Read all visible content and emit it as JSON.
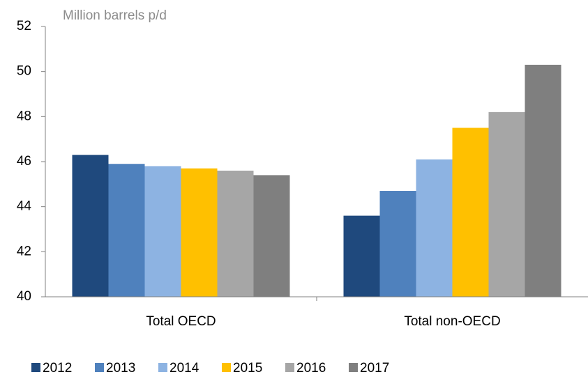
{
  "chart_data": {
    "type": "bar",
    "y_label": "Million barrels p/d",
    "categories": [
      "Total OECD",
      "Total non-OECD"
    ],
    "series": [
      {
        "name": "2012",
        "color": "#1f497d",
        "values": [
          46.3,
          43.6
        ]
      },
      {
        "name": "2013",
        "color": "#4f81bd",
        "values": [
          45.9,
          44.7
        ]
      },
      {
        "name": "2014",
        "color": "#8db3e2",
        "values": [
          45.8,
          46.1
        ]
      },
      {
        "name": "2015",
        "color": "#ffc000",
        "values": [
          45.7,
          47.5
        ]
      },
      {
        "name": "2016",
        "color": "#a6a6a6",
        "values": [
          45.6,
          48.2
        ]
      },
      {
        "name": "2017",
        "color": "#7f7f7f",
        "values": [
          45.4,
          50.3
        ]
      }
    ],
    "ylim": [
      40,
      52
    ],
    "yticks": [
      40,
      42,
      44,
      46,
      48,
      50,
      52
    ],
    "grid": false,
    "legend": "bottom"
  }
}
